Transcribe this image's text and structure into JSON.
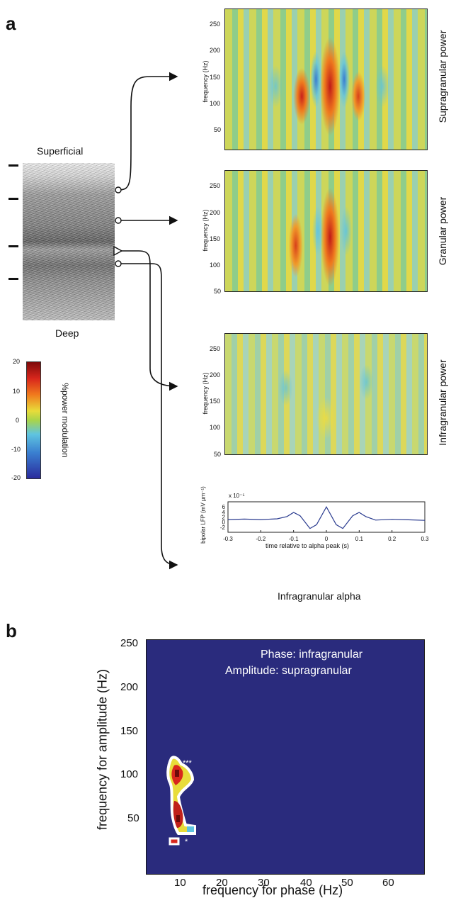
{
  "panel_a": {
    "letter": "a",
    "section_top": "Superficial",
    "section_bottom": "Deep",
    "row_labels": [
      "Supragranular power",
      "Granular power",
      "Infragranular power"
    ],
    "spectro_ylabel": "frequency (Hz)",
    "spectro_yticks": [
      "250",
      "200",
      "150",
      "100",
      "50"
    ],
    "colorbar_label": "%power modulation",
    "colorbar_ticks": [
      "20",
      "10",
      "0",
      "-10",
      "-20"
    ],
    "lfp_ylabel": "bipolar LFP (mV µm⁻¹)",
    "lfp_scale": "x 10⁻⁵",
    "lfp_yticks": [
      "6",
      "4",
      "2",
      "0",
      "-2"
    ],
    "lfp_xticks": [
      "-0.3",
      "-0.2",
      "-0.1",
      "0",
      "0.1",
      "0.2",
      "0.3"
    ],
    "lfp_xlabel": "time relative to alpha peak (s)",
    "caption": "Infragranular alpha"
  },
  "panel_b": {
    "letter": "b",
    "annotation_phase": "Phase: infragranular",
    "annotation_amplitude": "Amplitude: supragranular",
    "xlabel": "frequency for phase (Hz)",
    "ylabel": "frequency for amplitude (Hz)",
    "xticks": [
      "10",
      "20",
      "30",
      "40",
      "50",
      "60"
    ],
    "yticks": [
      "250",
      "200",
      "150",
      "100",
      "50"
    ],
    "sig_upper": "***",
    "sig_lower": "*"
  },
  "colors": {
    "background_map": "#2a2b7d",
    "curve": "#2a3b8f",
    "accent_red": "#d8261c",
    "accent_yellow": "#e8dc3a",
    "accent_cyan": "#5fc4e0"
  },
  "chart_data": {
    "type": "line",
    "title": "",
    "xlabel": "time relative to alpha peak (s)",
    "ylabel": "bipolar LFP (mV µm⁻¹)",
    "xlim": [
      -0.3,
      0.3
    ],
    "ylim": [
      -4,
      8
    ],
    "x": [
      -0.3,
      -0.25,
      -0.2,
      -0.15,
      -0.12,
      -0.1,
      -0.08,
      -0.05,
      -0.03,
      0,
      0.03,
      0.05,
      0.08,
      0.1,
      0.12,
      0.15,
      0.2,
      0.25,
      0.3
    ],
    "series": [
      {
        "values": [
          1.0,
          1.2,
          1.0,
          1.3,
          2.2,
          3.8,
          2.5,
          -2.5,
          -1.0,
          6.0,
          -1.0,
          -2.5,
          2.5,
          3.8,
          2.2,
          0.8,
          1.1,
          0.9,
          0.7
        ]
      }
    ]
  }
}
